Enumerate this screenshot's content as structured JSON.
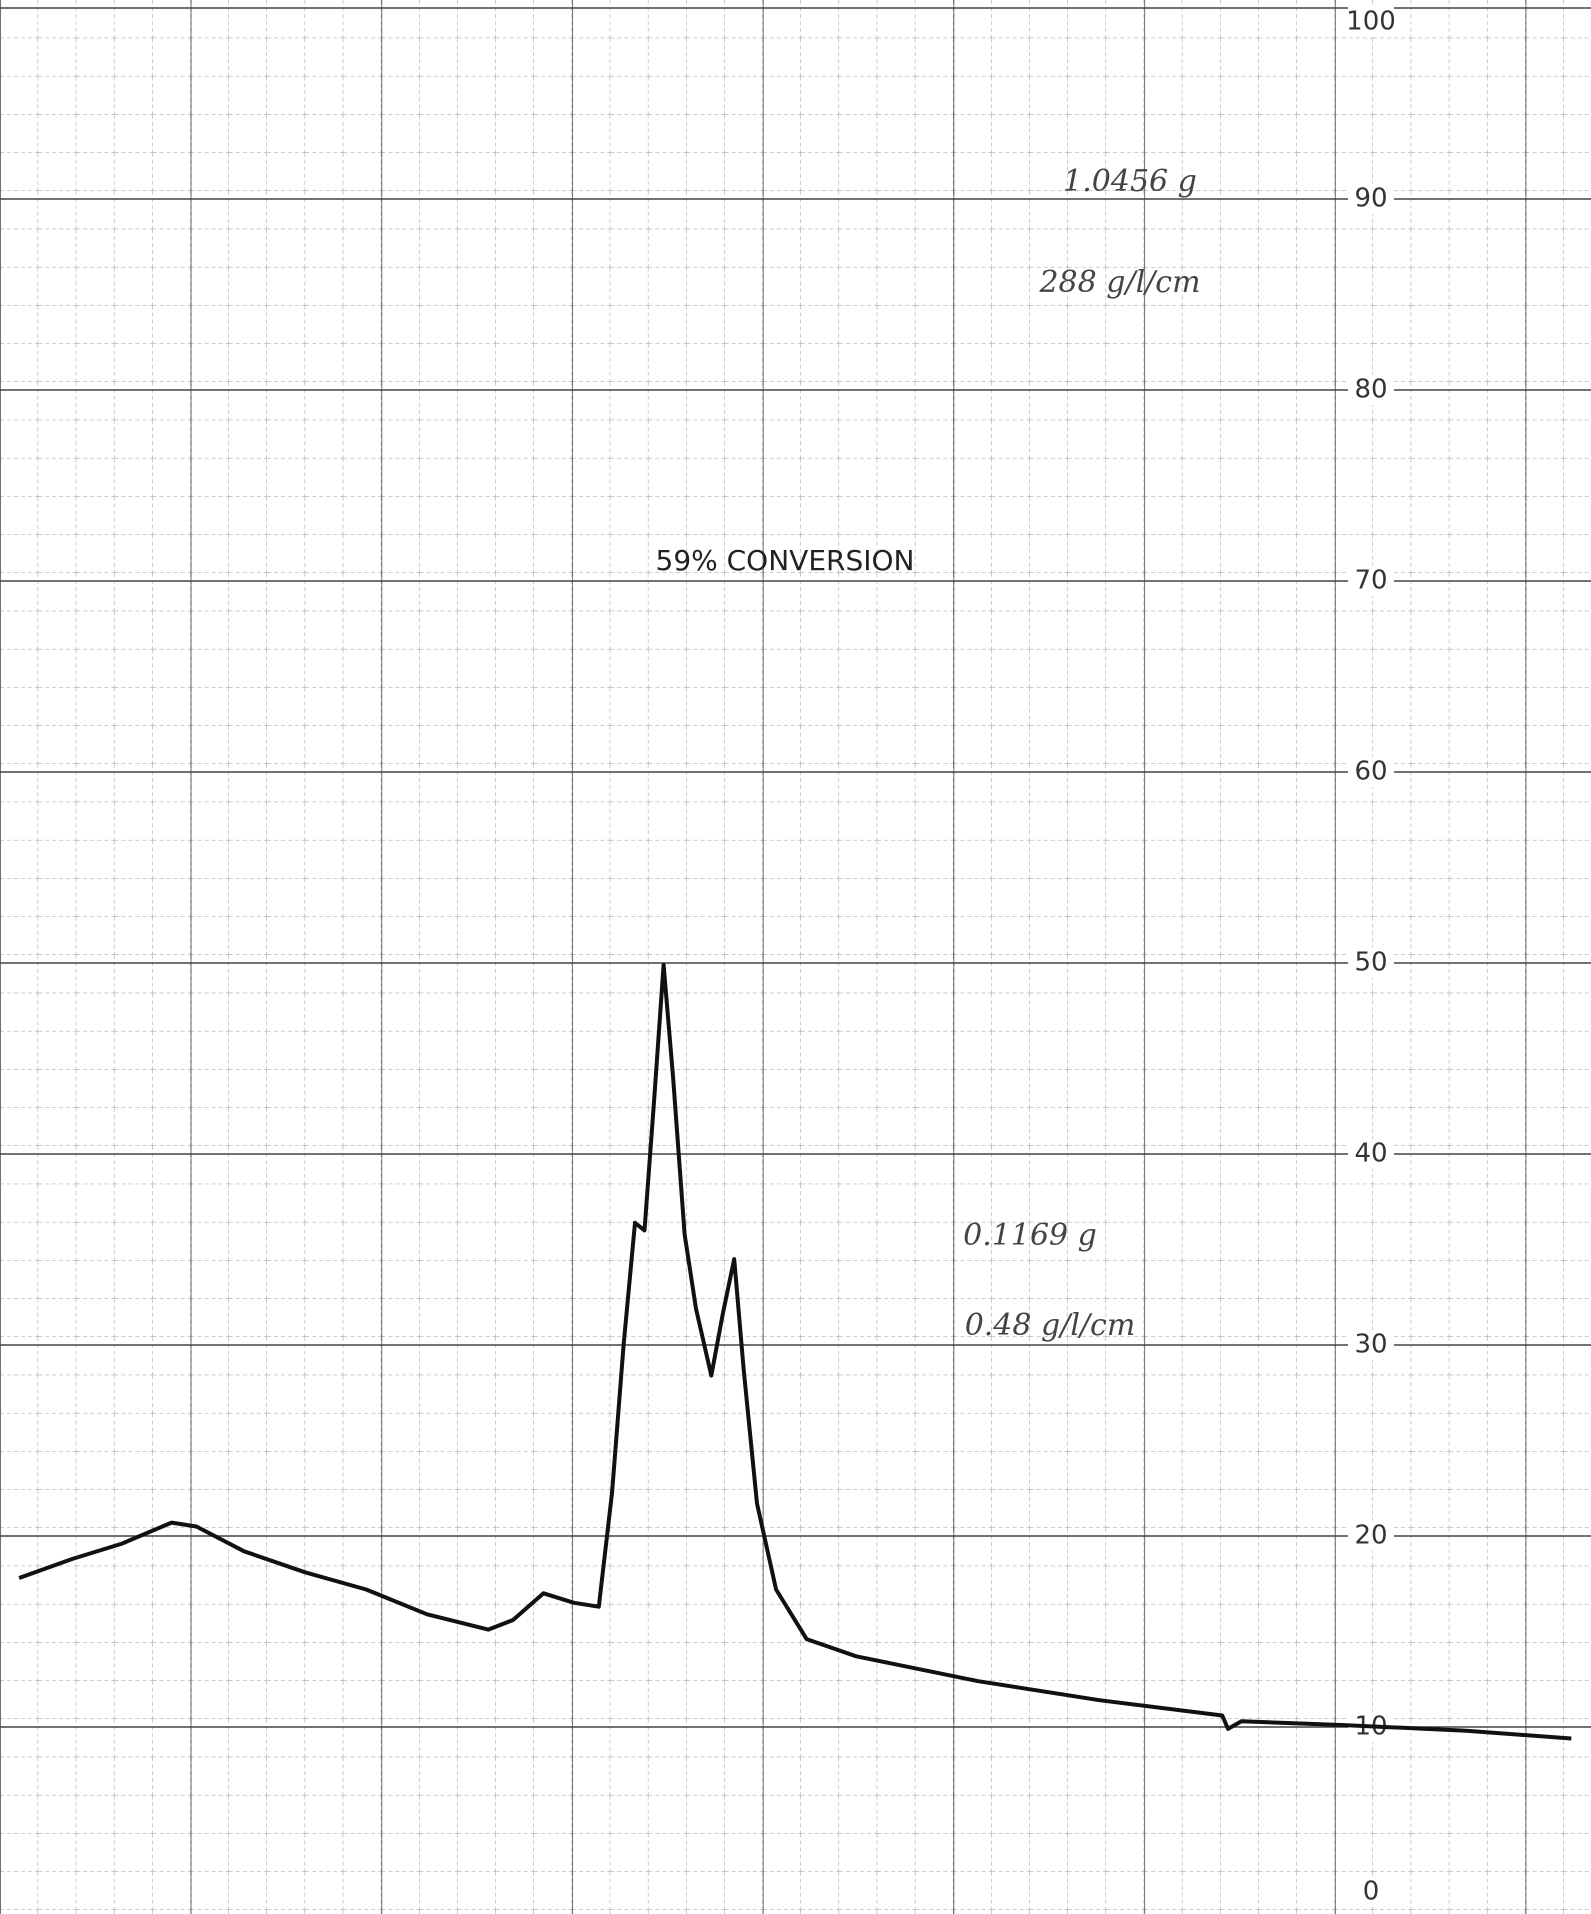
{
  "chart_data": {
    "type": "line",
    "annotations": [
      "1.0456 g",
      "288 g/l/cm",
      "59% CONVERSION",
      "0.1169 g",
      "0.48 g/l/cm"
    ],
    "x": [
      0.1,
      0.38,
      0.64,
      0.9,
      1.03,
      1.28,
      1.6,
      1.92,
      2.24,
      2.56,
      2.69,
      2.85,
      3.01,
      3.14,
      3.21,
      3.27,
      3.33,
      3.38,
      3.43,
      3.48,
      3.53,
      3.59,
      3.65,
      3.73,
      3.79,
      3.85,
      3.9,
      3.97,
      4.07,
      4.23,
      4.49,
      5.13,
      5.77,
      6.41,
      6.44,
      6.51,
      7.05,
      7.69,
      8.24
    ],
    "values": [
      17.8,
      18.8,
      19.6,
      20.7,
      20.5,
      19.2,
      18.1,
      17.2,
      15.9,
      15.1,
      15.6,
      17.0,
      16.5,
      16.3,
      22.3,
      30,
      36.4,
      36,
      42.8,
      49.9,
      44,
      35.8,
      31.9,
      28.4,
      31.6,
      34.5,
      28.7,
      21.7,
      17.2,
      14.6,
      13.7,
      12.4,
      11.4,
      10.6,
      9.9,
      10.3,
      10.1,
      9.8,
      9.4
    ],
    "color": "#111111",
    "xlim": [
      0,
      8.27
    ],
    "ylim": [
      0,
      100
    ],
    "yticks": [
      0,
      10,
      20,
      30,
      40,
      50,
      60,
      70,
      80,
      90,
      100
    ],
    "grid": true
  }
}
